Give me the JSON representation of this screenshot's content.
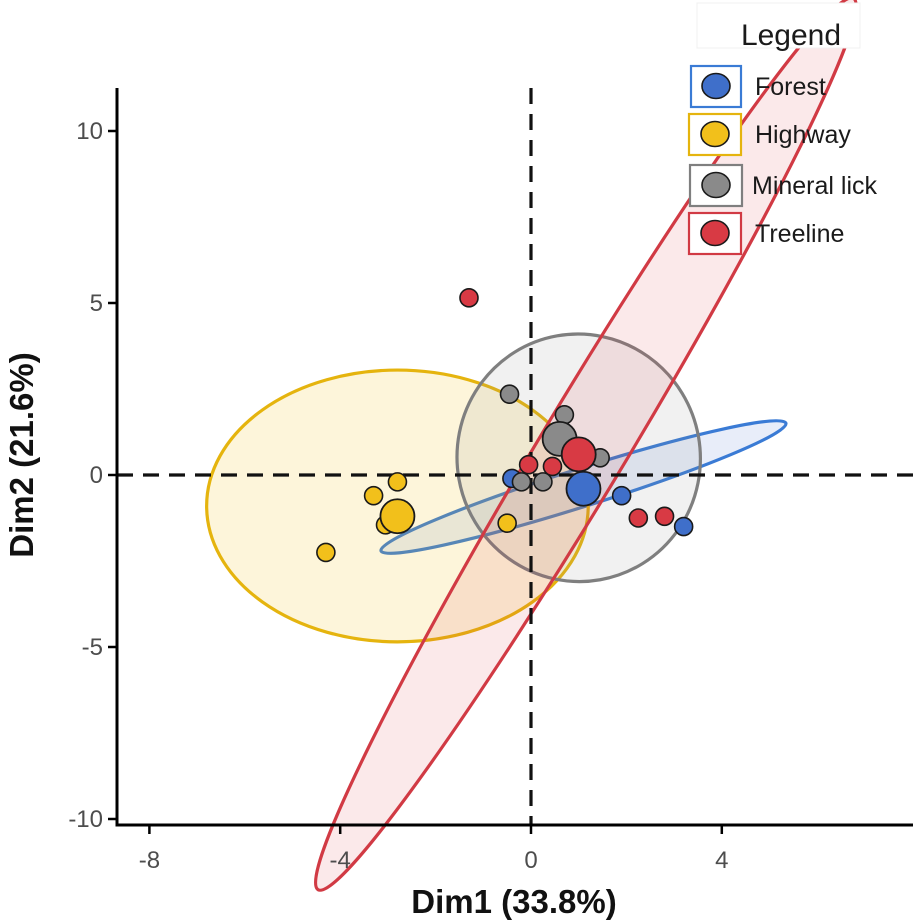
{
  "chart_data": {
    "type": "scatter",
    "xlabel": "Dim1 (33.8%)",
    "ylabel": "Dim2 (21.6%)",
    "xlim": [
      -8.5,
      8
    ],
    "ylim": [
      -10.2,
      11
    ],
    "xticks": [
      -8,
      -4,
      0,
      4
    ],
    "xtick_labels": [
      "-8",
      "-4",
      "0",
      "4"
    ],
    "yticks": [
      10,
      5,
      0,
      -5,
      -10
    ],
    "ytick_labels": [
      "10",
      "5",
      "0",
      "-5",
      "-10"
    ],
    "grid": false,
    "reference_lines": {
      "x": 0,
      "y": 0,
      "style": "dashed"
    },
    "legend": {
      "title": "Legend",
      "position": "top-right"
    },
    "series": [
      {
        "name": "Forest",
        "color": "#3f6fca",
        "edge_color": "#3a7bd5",
        "ellipse": {
          "cx": 1.1,
          "cy": -0.35,
          "rx": 4.45,
          "ry": 0.55,
          "angle_deg": -17.5,
          "fill_opacity": 0.12
        },
        "points": [
          [
            1.9,
            -0.6
          ],
          [
            3.2,
            -1.5
          ],
          [
            -0.4,
            -0.1
          ],
          [
            0.8,
            0.7
          ]
        ],
        "centroid": [
          1.1,
          -0.4
        ]
      },
      {
        "name": "Highway",
        "color": "#f2c01b",
        "edge_color": "#e5b40e",
        "ellipse": {
          "cx": -2.8,
          "cy": -0.9,
          "rx": 4.0,
          "ry": 3.95,
          "angle_deg": 0,
          "fill_opacity": 0.16
        },
        "points": [
          [
            -4.3,
            -2.25
          ],
          [
            -3.3,
            -0.6
          ],
          [
            -2.8,
            -0.2
          ],
          [
            -3.05,
            -1.45
          ],
          [
            -2.9,
            -1.3
          ],
          [
            -0.5,
            -1.4
          ]
        ],
        "centroid": [
          -2.8,
          -1.2
        ]
      },
      {
        "name": "Mineral lick",
        "color": "#8a8a8a",
        "edge_color": "#7f7f7f",
        "ellipse": {
          "cx": 1.0,
          "cy": 0.5,
          "rx": 2.55,
          "ry": 3.6,
          "angle_deg": -10,
          "fill_opacity": 0.12
        },
        "points": [
          [
            -0.45,
            2.35
          ],
          [
            0.7,
            1.75
          ],
          [
            1.45,
            0.5
          ],
          [
            0.25,
            -0.2
          ],
          [
            -0.2,
            -0.2
          ]
        ],
        "centroid": [
          0.6,
          1.05
        ]
      },
      {
        "name": "Treeline",
        "color": "#d83a44",
        "edge_color": "#d13a44",
        "ellipse": {
          "cx": 1.15,
          "cy": 0.9,
          "rx": 10.9,
          "ry": 1.25,
          "angle_deg": -59,
          "fill_opacity": 0.11
        },
        "points": [
          [
            -1.3,
            5.15
          ],
          [
            -0.05,
            0.3
          ],
          [
            2.25,
            -1.25
          ],
          [
            2.8,
            -1.2
          ],
          [
            0.45,
            0.25
          ]
        ],
        "centroid": [
          1.0,
          0.6
        ]
      }
    ]
  }
}
